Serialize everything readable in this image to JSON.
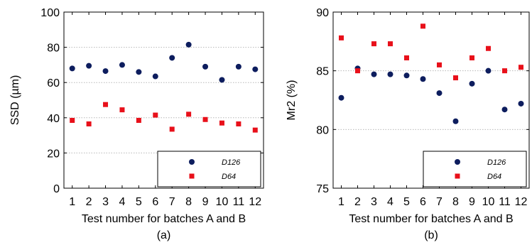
{
  "colors": {
    "d126": "#0d1d5e",
    "d64": "#e8101a",
    "grid": "#b8b8b8"
  },
  "chart_data": [
    {
      "type": "scatter",
      "caption": "(a)",
      "xlabel": "Test number for batches A and B",
      "ylabel": "SSD (µm)",
      "ylim": [
        0,
        100
      ],
      "yticks": [
        0,
        20,
        40,
        60,
        80,
        100
      ],
      "x": [
        "1",
        "2",
        "3",
        "4",
        "5",
        "6",
        "7",
        "8",
        "9",
        "10",
        "11",
        "12"
      ],
      "grid": "horizontal dotted",
      "legend_position": "bottom-right",
      "series": [
        {
          "name": "D126",
          "marker": "circle",
          "values": [
            68,
            69.5,
            66.5,
            70,
            66,
            63.5,
            74,
            81.5,
            69,
            61.5,
            69,
            67.5
          ]
        },
        {
          "name": "D64",
          "marker": "square",
          "values": [
            38.5,
            36.5,
            47.5,
            44.5,
            38.5,
            41.5,
            33.5,
            42,
            39,
            37,
            36.5,
            33
          ]
        }
      ]
    },
    {
      "type": "scatter",
      "caption": "(b)",
      "xlabel": "Test number for batches A and B",
      "ylabel": "Mr2 (%)",
      "ylim": [
        75,
        90
      ],
      "yticks": [
        75,
        80,
        85,
        90
      ],
      "x": [
        "1",
        "2",
        "3",
        "4",
        "5",
        "6",
        "7",
        "8",
        "9",
        "10",
        "11",
        "12"
      ],
      "grid": "horizontal dotted",
      "legend_position": "bottom-right",
      "series": [
        {
          "name": "D126",
          "marker": "circle",
          "values": [
            82.7,
            85.2,
            84.7,
            84.7,
            84.6,
            84.3,
            83.1,
            80.7,
            83.9,
            85,
            81.7,
            82.2
          ]
        },
        {
          "name": "D64",
          "marker": "square",
          "values": [
            87.8,
            85,
            87.3,
            87.3,
            86.1,
            88.8,
            85.5,
            84.4,
            86.1,
            86.9,
            85,
            85.3
          ]
        }
      ]
    }
  ]
}
